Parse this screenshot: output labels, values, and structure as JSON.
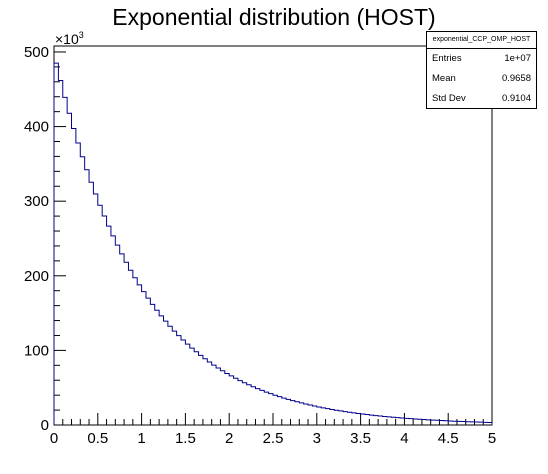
{
  "chart_data": {
    "type": "histogram",
    "title": "Exponential distribution (HOST)",
    "xlabel": "",
    "ylabel": "",
    "y_multiplier_label": "×10",
    "y_multiplier_exponent": "3",
    "xlim": [
      0,
      5
    ],
    "ylim": [
      0,
      508
    ],
    "x_ticks": [
      0,
      0.5,
      1,
      1.5,
      2,
      2.5,
      3,
      3.5,
      4,
      4.5,
      5
    ],
    "x_tick_labels": [
      "0",
      "0.5",
      "1",
      "1.5",
      "2",
      "2.5",
      "3",
      "3.5",
      "4",
      "4.5",
      "5"
    ],
    "y_ticks": [
      0,
      100,
      200,
      300,
      400,
      500
    ],
    "y_tick_labels": [
      "0",
      "100",
      "200",
      "300",
      "400",
      "500"
    ],
    "bin_width": 0.05,
    "series_color": "#00008b",
    "values": [
      485.0,
      461.7,
      439.2,
      417.8,
      397.4,
      378.0,
      359.6,
      342.1,
      325.4,
      309.6,
      294.5,
      280.1,
      266.5,
      253.5,
      241.1,
      229.4,
      218.2,
      207.5,
      197.4,
      187.8,
      178.7,
      170.0,
      161.7,
      153.8,
      146.3,
      139.2,
      132.4,
      125.9,
      119.8,
      114.0,
      108.4,
      103.1,
      98.1,
      93.3,
      88.8,
      84.4,
      80.3,
      76.4,
      72.7,
      69.1,
      65.8,
      62.6,
      59.5,
      56.6,
      53.9,
      51.2,
      48.7,
      46.4,
      44.1,
      42.0,
      39.9,
      38.0,
      36.1,
      34.4,
      32.7,
      31.1,
      29.6,
      28.1,
      26.8,
      25.5,
      24.2,
      23.0,
      21.9,
      20.8,
      19.8,
      18.9,
      17.9,
      17.1,
      16.2,
      15.4,
      14.7,
      14.0,
      13.3,
      12.6,
      12.0,
      11.4,
      10.9,
      10.4,
      9.9,
      9.4,
      8.9,
      8.5,
      8.1,
      7.7,
      7.3,
      6.9,
      6.6,
      6.3,
      6.0,
      5.7,
      5.4,
      5.1,
      4.9,
      4.7,
      4.4,
      4.2,
      4.0,
      3.8,
      3.6,
      3.4
    ]
  },
  "stats_box": {
    "name": "exponential_CCP_OMP_HOST",
    "entries_label": "Entries",
    "entries_value": "1e+07",
    "mean_label": "Mean",
    "mean_value": "0.9658",
    "stddev_label": "Std Dev",
    "stddev_value": "0.9104"
  }
}
